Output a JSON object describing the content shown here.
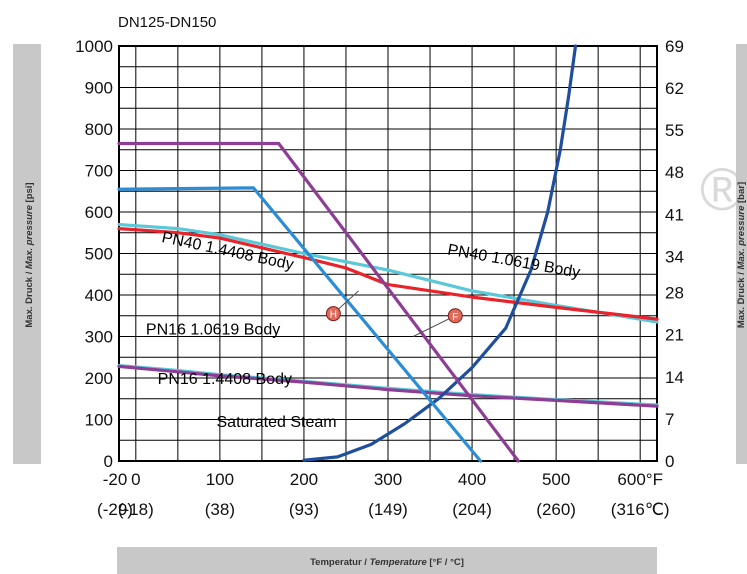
{
  "chart_data": {
    "type": "line",
    "title": "DN125-DN150",
    "xlabel_de": "Temperatur / ",
    "xlabel_en": "Temperature",
    "xlabel_unit": " [°F / °C]",
    "ylabel_left_de": "Max. Druck / ",
    "ylabel_left_en": "Max. pressure",
    "ylabel_left_unit": " [psi]",
    "ylabel_right_de": "Max. Druck / ",
    "ylabel_right_en": "Max. pressure",
    "ylabel_right_unit": " [bar]",
    "xlim": [
      -20,
      620
    ],
    "ylim": [
      0,
      1000
    ],
    "grid": true,
    "x_ticks": [
      {
        "value": -20,
        "f": "-20",
        "c": "(-29)"
      },
      {
        "value": 0,
        "f": "0",
        "c": "(-18)"
      },
      {
        "value": 100,
        "f": "100",
        "c": "(38)"
      },
      {
        "value": 200,
        "f": "200",
        "c": "(93)"
      },
      {
        "value": 300,
        "f": "300",
        "c": "(149)"
      },
      {
        "value": 400,
        "f": "400",
        "c": "(204)"
      },
      {
        "value": 500,
        "f": "500",
        "c": "(260)"
      },
      {
        "value": 600,
        "f": "600°F",
        "c": "(316℃)"
      }
    ],
    "y_ticks_left": [
      {
        "value": 0,
        "label": "0"
      },
      {
        "value": 100,
        "label": "100"
      },
      {
        "value": 200,
        "label": "200"
      },
      {
        "value": 300,
        "label": "300"
      },
      {
        "value": 400,
        "label": "400"
      },
      {
        "value": 500,
        "label": "500"
      },
      {
        "value": 600,
        "label": "600"
      },
      {
        "value": 700,
        "label": "700"
      },
      {
        "value": 800,
        "label": "800"
      },
      {
        "value": 900,
        "label": "900"
      },
      {
        "value": 1000,
        "label": "1000"
      }
    ],
    "y_ticks_right": [
      {
        "value": 0,
        "label": "0"
      },
      {
        "value": 101.5,
        "label": "7"
      },
      {
        "value": 203,
        "label": "14"
      },
      {
        "value": 304.5,
        "label": "21"
      },
      {
        "value": 406,
        "label": "28"
      },
      {
        "value": 493,
        "label": "34"
      },
      {
        "value": 594.5,
        "label": "41"
      },
      {
        "value": 696,
        "label": "48"
      },
      {
        "value": 797.5,
        "label": "55"
      },
      {
        "value": 899,
        "label": "62"
      },
      {
        "value": 1000,
        "label": "69"
      }
    ],
    "series": [
      {
        "name": "PN40 1.0619 Body",
        "color": "#5bc8d8",
        "points": [
          [
            -20,
            570
          ],
          [
            50,
            560
          ],
          [
            100,
            545
          ],
          [
            200,
            500
          ],
          [
            300,
            460
          ],
          [
            400,
            410
          ],
          [
            500,
            375
          ],
          [
            620,
            335
          ]
        ]
      },
      {
        "name": "PN40 1.4408 Body",
        "color": "#e8232a",
        "points": [
          [
            -20,
            560
          ],
          [
            50,
            550
          ],
          [
            100,
            537
          ],
          [
            200,
            490
          ],
          [
            250,
            465
          ],
          [
            300,
            425
          ],
          [
            400,
            395
          ],
          [
            500,
            370
          ],
          [
            620,
            342
          ]
        ]
      },
      {
        "name": "PN16 1.0619 Body",
        "color": "#5bc8d8",
        "points": [
          [
            -20,
            230
          ],
          [
            50,
            218
          ],
          [
            100,
            208
          ],
          [
            200,
            192
          ],
          [
            300,
            175
          ],
          [
            400,
            160
          ],
          [
            500,
            148
          ],
          [
            620,
            135
          ]
        ]
      },
      {
        "name": "PN16 1.4408 Body",
        "color": "#8e3d95",
        "points": [
          [
            -20,
            228
          ],
          [
            50,
            215
          ],
          [
            100,
            205
          ],
          [
            200,
            190
          ],
          [
            300,
            172
          ],
          [
            400,
            157
          ],
          [
            500,
            146
          ],
          [
            620,
            132
          ]
        ]
      },
      {
        "name": "Saturated Steam",
        "color": "#1f4e9c",
        "points": [
          [
            200,
            2
          ],
          [
            240,
            10
          ],
          [
            280,
            40
          ],
          [
            320,
            90
          ],
          [
            360,
            150
          ],
          [
            400,
            225
          ],
          [
            440,
            320
          ],
          [
            470,
            460
          ],
          [
            490,
            600
          ],
          [
            505,
            750
          ],
          [
            515,
            880
          ],
          [
            523,
            1000
          ]
        ]
      },
      {
        "name": "",
        "color": "#2a8dd6",
        "points": [
          [
            -20,
            655
          ],
          [
            140,
            658
          ],
          [
            410,
            0
          ]
        ]
      },
      {
        "name": "",
        "color": "#8e3d95",
        "points": [
          [
            -20,
            765
          ],
          [
            170,
            765
          ],
          [
            455,
            0
          ]
        ]
      }
    ],
    "curve_labels": [
      {
        "text": "PN40  1.4408 Body",
        "x": 30,
        "y": 528,
        "rotate": 12
      },
      {
        "text": "PN40   1.0619 Body",
        "x": 370,
        "y": 498,
        "rotate": 10
      },
      {
        "text": "PN16 1.0619 Body",
        "x": 12,
        "y": 305,
        "rotate": 0
      },
      {
        "text": "PN16  1.4408 Body",
        "x": 26,
        "y": 185,
        "rotate": 0
      },
      {
        "text": "Saturated Steam",
        "x": 96,
        "y": 82,
        "rotate": 0
      }
    ],
    "markers": [
      {
        "letter": "H",
        "x": 235,
        "y": 355,
        "lx2": 265,
        "ly2": 410
      },
      {
        "letter": "F",
        "x": 380,
        "y": 350,
        "lx2": 330,
        "ly2": 300
      }
    ],
    "watermark": "®"
  }
}
